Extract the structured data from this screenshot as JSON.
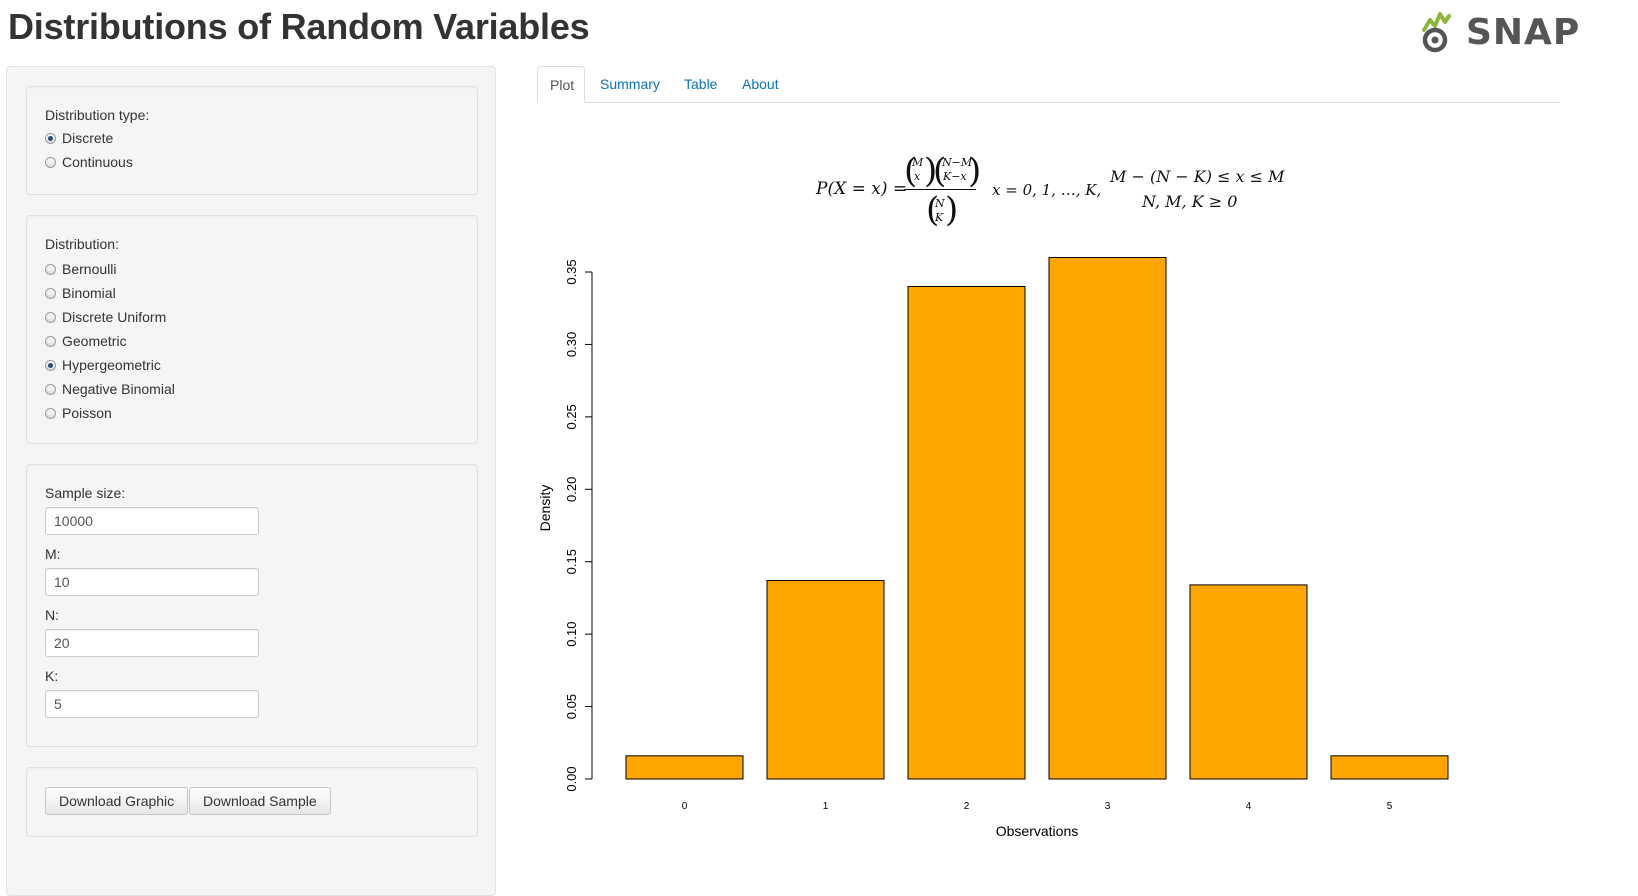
{
  "app": {
    "title": "Distributions of Random Variables",
    "logo_text": "SNAP"
  },
  "sidebar": {
    "distribution_type": {
      "label": "Distribution type:",
      "options": [
        "Discrete",
        "Continuous"
      ],
      "selected": "Discrete"
    },
    "distribution": {
      "label": "Distribution:",
      "options": [
        "Bernoulli",
        "Binomial",
        "Discrete Uniform",
        "Geometric",
        "Hypergeometric",
        "Negative Binomial",
        "Poisson"
      ],
      "selected": "Hypergeometric"
    },
    "params": {
      "sample_size_label": "Sample size:",
      "sample_size_value": "10000",
      "m_label": "M:",
      "m_value": "10",
      "n_label": "N:",
      "n_value": "20",
      "k_label": "K:",
      "k_value": "5"
    },
    "buttons": {
      "download_graphic": "Download Graphic",
      "download_sample": "Download Sample"
    }
  },
  "tabs": [
    {
      "label": "Plot",
      "active": true
    },
    {
      "label": "Summary",
      "active": false
    },
    {
      "label": "Table",
      "active": false
    },
    {
      "label": "About",
      "active": false
    }
  ],
  "formula": {
    "lhs": "P(X = x) =",
    "num_left_top": "M",
    "num_left_bottom": "x",
    "num_right_top": "N−M",
    "num_right_bottom": "K−x",
    "den_top": "N",
    "den_bottom": "K",
    "support": "x = 0, 1, …, K,",
    "cond1": "M − (N − K) ≤ x ≤ M",
    "cond2": "N, M, K ≥ 0"
  },
  "colors": {
    "bar_fill": "#FFA500",
    "bar_stroke": "#000000",
    "tab_link": "#0d72b8"
  },
  "chart_data": {
    "type": "bar",
    "categories": [
      "0",
      "1",
      "2",
      "3",
      "4",
      "5"
    ],
    "values": [
      0.016,
      0.137,
      0.34,
      0.36,
      0.134,
      0.016
    ],
    "xlabel": "Observations",
    "ylabel": "Density",
    "ylim": [
      0,
      0.35
    ],
    "yticks": [
      "0.00",
      "0.05",
      "0.10",
      "0.15",
      "0.20",
      "0.25",
      "0.30",
      "0.35"
    ],
    "grid": false
  }
}
